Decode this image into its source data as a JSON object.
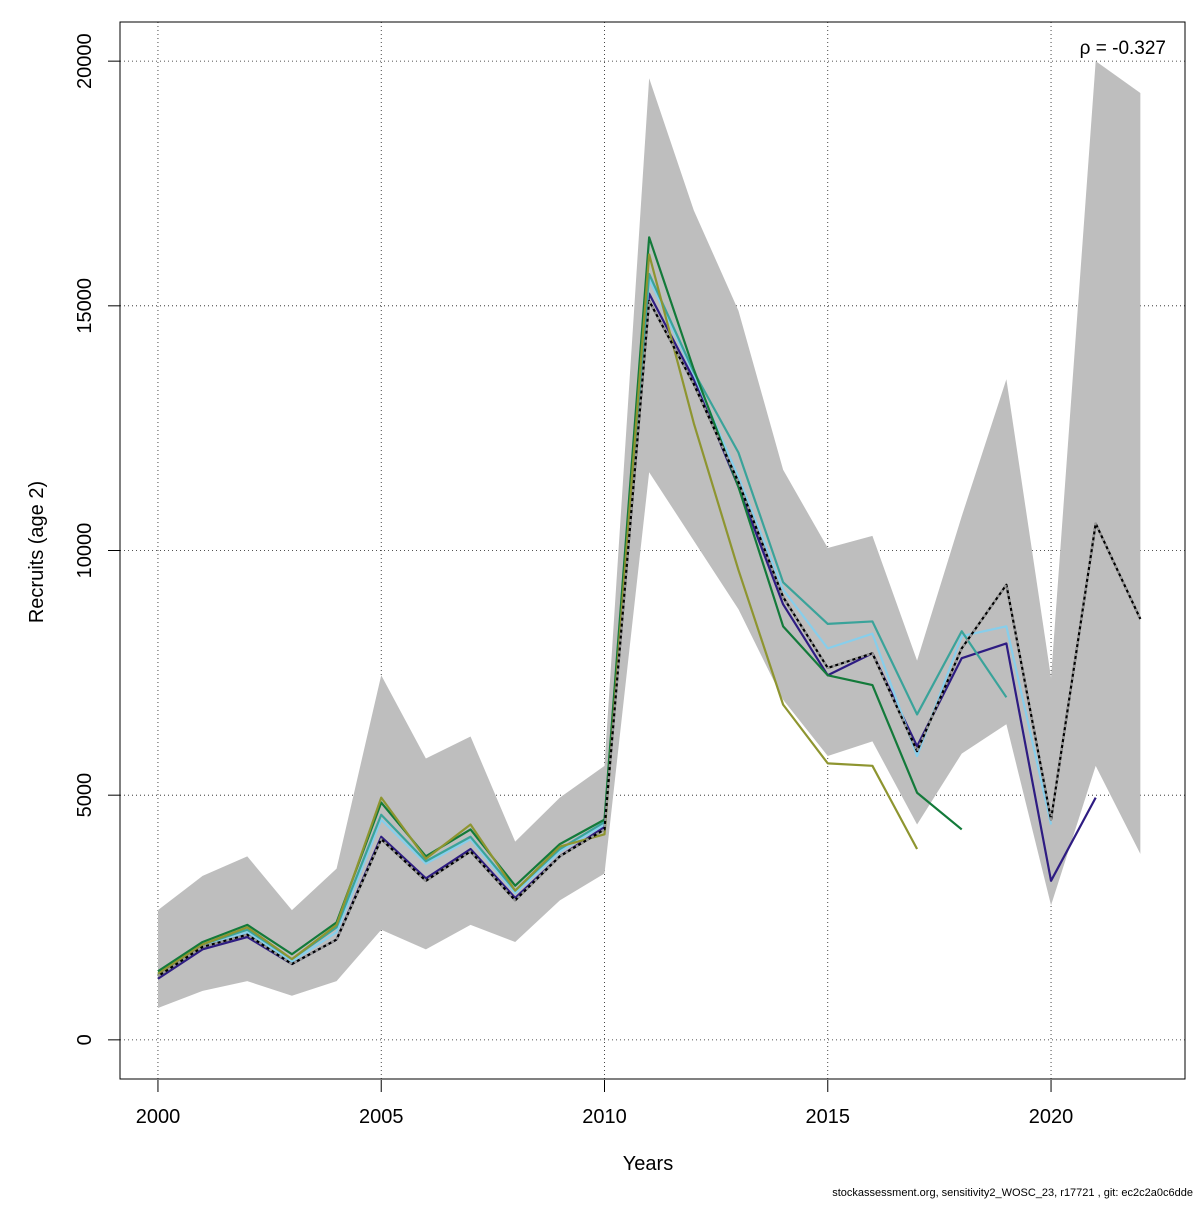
{
  "chart_data": {
    "type": "line",
    "title": "",
    "xlabel": "Years",
    "ylabel": "Recruits (age 2)",
    "xlim": [
      1999.15,
      2023.0
    ],
    "ylim": [
      -800,
      20800
    ],
    "x_ticks": [
      2000,
      2005,
      2010,
      2015,
      2020
    ],
    "y_ticks": [
      0,
      5000,
      10000,
      15000,
      20000
    ],
    "x_tick_labels": [
      "2000",
      "2005",
      "2010",
      "2015",
      "2020"
    ],
    "y_tick_labels": [
      "0",
      "5000",
      "10000",
      "15000",
      "20000"
    ],
    "grid": true,
    "annotation": "ρ = -0.327",
    "footer": "stockassessment.org, sensitivity2_WOSC_23, r17721 , git: ec2c2a0c6dde",
    "band": {
      "color": "#bebebe",
      "x": [
        2000,
        2001,
        2002,
        2003,
        2004,
        2005,
        2006,
        2007,
        2008,
        2009,
        2010,
        2011,
        2012,
        2013,
        2014,
        2015,
        2016,
        2017,
        2018,
        2019,
        2020,
        2021,
        2022
      ],
      "lower": [
        650,
        1000,
        1200,
        900,
        1200,
        2250,
        1850,
        2350,
        2000,
        2850,
        3400,
        11600,
        10200,
        8800,
        6950,
        5800,
        6100,
        4400,
        5850,
        6450,
        2750,
        5600,
        3800
      ],
      "upper": [
        2650,
        3350,
        3750,
        2650,
        3500,
        7450,
        5750,
        6200,
        4050,
        4950,
        5600,
        19650,
        16950,
        14900,
        11650,
        10050,
        10300,
        7750,
        10700,
        13500,
        7400,
        20000,
        19350
      ]
    },
    "series": [
      {
        "color": "#000000",
        "dashed": true,
        "x": [
          2000,
          2001,
          2002,
          2003,
          2004,
          2005,
          2006,
          2007,
          2008,
          2009,
          2010,
          2011,
          2012,
          2013,
          2014,
          2015,
          2016,
          2017,
          2018,
          2019,
          2020,
          2021,
          2022
        ],
        "values": [
          1300,
          1900,
          2150,
          1550,
          2050,
          4100,
          3250,
          3850,
          2850,
          3750,
          4300,
          15100,
          13400,
          11400,
          9050,
          7600,
          7900,
          5900,
          8000,
          9300,
          4500,
          10550,
          8600
        ]
      },
      {
        "color": "#2e1c82",
        "x": [
          2000,
          2001,
          2002,
          2003,
          2004,
          2005,
          2006,
          2007,
          2008,
          2009,
          2010,
          2011,
          2012,
          2013,
          2014,
          2015,
          2016,
          2017,
          2018,
          2019,
          2020,
          2021
        ],
        "values": [
          1250,
          1850,
          2100,
          1550,
          2050,
          4150,
          3300,
          3900,
          2900,
          3750,
          4350,
          15250,
          13500,
          11300,
          8900,
          7450,
          7900,
          6000,
          7800,
          8100,
          3250,
          4950
        ]
      },
      {
        "color": "#87ceeb",
        "x": [
          2000,
          2001,
          2002,
          2003,
          2004,
          2005,
          2006,
          2007,
          2008,
          2009,
          2010,
          2011,
          2012,
          2013,
          2014,
          2015,
          2016,
          2017,
          2018,
          2019,
          2020
        ],
        "values": [
          1300,
          1900,
          2200,
          1600,
          2200,
          4500,
          3600,
          4100,
          3000,
          3850,
          4400,
          15550,
          13600,
          11500,
          9200,
          8000,
          8300,
          5800,
          8250,
          8450,
          4400
        ]
      },
      {
        "color": "#3aa39a",
        "x": [
          2000,
          2001,
          2002,
          2003,
          2004,
          2005,
          2006,
          2007,
          2008,
          2009,
          2010,
          2011,
          2012,
          2013,
          2014,
          2015,
          2016,
          2017,
          2018,
          2019
        ],
        "values": [
          1350,
          1950,
          2250,
          1650,
          2300,
          4600,
          3650,
          4150,
          3050,
          3900,
          4450,
          15650,
          13650,
          12000,
          9350,
          8500,
          8550,
          6650,
          8350,
          7000
        ]
      },
      {
        "color": "#137a3a",
        "x": [
          2000,
          2001,
          2002,
          2003,
          2004,
          2005,
          2006,
          2007,
          2008,
          2009,
          2010,
          2011,
          2012,
          2013,
          2014,
          2015,
          2016,
          2017,
          2018
        ],
        "values": [
          1400,
          2000,
          2350,
          1750,
          2400,
          4850,
          3750,
          4300,
          3150,
          4000,
          4500,
          16400,
          13700,
          11300,
          8450,
          7450,
          7250,
          5050,
          4300
        ]
      },
      {
        "color": "#8e9530",
        "x": [
          2000,
          2001,
          2002,
          2003,
          2004,
          2005,
          2006,
          2007,
          2008,
          2009,
          2010,
          2011,
          2012,
          2013,
          2014,
          2015,
          2016,
          2017
        ],
        "values": [
          1350,
          1950,
          2300,
          1650,
          2350,
          4950,
          3700,
          4400,
          3050,
          3950,
          4200,
          16050,
          12600,
          9600,
          6850,
          5650,
          5600,
          3900
        ]
      }
    ]
  }
}
